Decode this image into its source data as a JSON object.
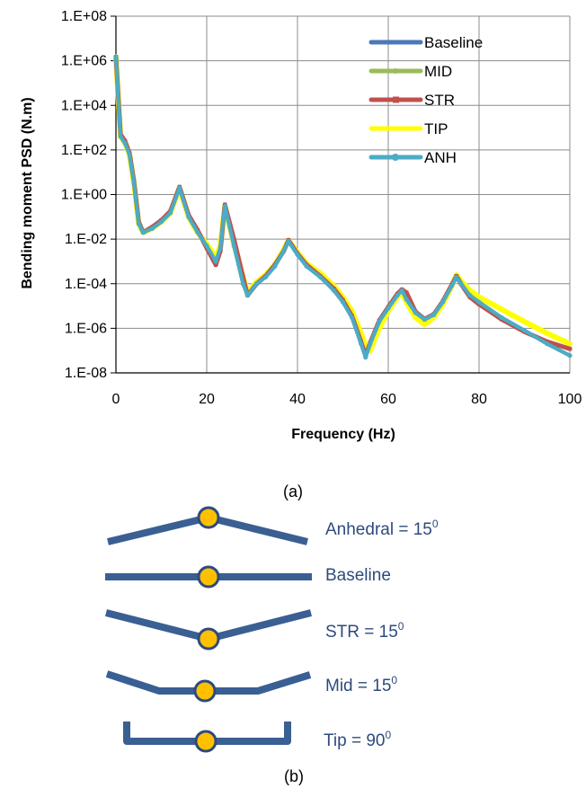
{
  "chart_data": {
    "type": "line",
    "title": "",
    "xlabel": "Frequency (Hz)",
    "ylabel": "Bending moment PSD (N.m)",
    "xlim": [
      0,
      100
    ],
    "ylim_log10": [
      -8,
      8
    ],
    "y_scale": "log",
    "x_ticks": [
      "0",
      "20",
      "40",
      "60",
      "80",
      "100"
    ],
    "y_ticks": [
      "1.E+08",
      "1.E+06",
      "1.E+04",
      "1.E+02",
      "1.E+00",
      "1.E-02",
      "1.E-04",
      "1.E-06",
      "1.E-08"
    ],
    "grid": true,
    "legend_position": "top-right",
    "series": [
      {
        "name": "Baseline",
        "color": "#4A78B8",
        "x": [
          0,
          1,
          2,
          3,
          4,
          5,
          6,
          8,
          10,
          12,
          14,
          16,
          18,
          20,
          22,
          23,
          24,
          26,
          28,
          29,
          31,
          33,
          35,
          37,
          38,
          40,
          42,
          45,
          48,
          50,
          52,
          54,
          55,
          56,
          58,
          60,
          62,
          63,
          64,
          66,
          68,
          70,
          72,
          74,
          75,
          76,
          78,
          80,
          85,
          90,
          95,
          100
        ],
        "y": [
          1500000.0,
          400,
          200,
          60,
          3,
          0.05,
          0.02,
          0.03,
          0.06,
          0.15,
          2,
          0.1,
          0.02,
          0.005,
          0.001,
          0.004,
          0.3,
          0.005,
          0.0001,
          3e-05,
          0.0001,
          0.0002,
          0.0006,
          0.003,
          0.008,
          0.002,
          0.0006,
          0.0002,
          5e-05,
          1.5e-05,
          3e-06,
          2e-07,
          5e-08,
          2e-07,
          2e-06,
          8e-06,
          3e-05,
          5e-05,
          2e-05,
          5e-06,
          2.5e-06,
          4e-06,
          1.5e-05,
          8e-05,
          0.0002,
          0.0001,
          3e-05,
          1.5e-05,
          3e-06,
          8e-07,
          2e-07,
          6e-08
        ]
      },
      {
        "name": "MID",
        "color": "#9BBB59",
        "x": [
          0,
          1,
          2,
          3,
          4,
          5,
          6,
          8,
          10,
          12,
          14,
          16,
          18,
          20,
          22,
          23,
          24,
          26,
          28,
          29,
          31,
          33,
          35,
          37,
          38,
          40,
          42,
          45,
          48,
          50,
          52,
          54,
          55,
          56,
          58,
          60,
          62,
          63,
          64,
          66,
          68,
          70,
          72,
          74,
          75,
          76,
          78,
          80,
          85,
          90,
          95,
          100
        ],
        "y": [
          1500000.0,
          400,
          200,
          60,
          3,
          0.05,
          0.02,
          0.03,
          0.06,
          0.15,
          2,
          0.1,
          0.02,
          0.005,
          0.001,
          0.004,
          0.3,
          0.005,
          0.0001,
          3e-05,
          0.0001,
          0.0002,
          0.0006,
          0.003,
          0.008,
          0.002,
          0.0006,
          0.0002,
          5e-05,
          1.5e-05,
          3e-06,
          2e-07,
          5e-08,
          2e-07,
          2e-06,
          8e-06,
          3e-05,
          5e-05,
          2e-05,
          5e-06,
          2.5e-06,
          4e-06,
          1.5e-05,
          8e-05,
          0.0002,
          0.0001,
          3e-05,
          1.5e-05,
          3e-06,
          8e-07,
          2e-07,
          6e-08
        ]
      },
      {
        "name": "STR",
        "color": "#C0504D",
        "x": [
          0,
          1,
          2,
          3,
          4,
          5,
          6,
          8,
          10,
          12,
          14,
          16,
          18,
          20,
          22,
          23,
          24,
          26,
          28,
          29,
          31,
          33,
          35,
          37,
          38,
          40,
          42,
          45,
          48,
          50,
          52,
          54,
          55,
          56,
          58,
          60,
          62,
          63,
          64,
          66,
          68,
          70,
          72,
          74,
          75,
          76,
          78,
          80,
          85,
          90,
          95,
          100
        ],
        "y": [
          1500000.0,
          500,
          250,
          70,
          3.5,
          0.06,
          0.02,
          0.035,
          0.07,
          0.18,
          2.2,
          0.12,
          0.025,
          0.004,
          0.0007,
          0.003,
          0.35,
          0.01,
          0.0002,
          3e-05,
          0.0001,
          0.00022,
          0.0007,
          0.003,
          0.009,
          0.0022,
          0.0007,
          0.00022,
          6e-05,
          1.8e-05,
          3.5e-06,
          2.5e-07,
          6e-08,
          2.2e-07,
          2.2e-06,
          9e-06,
          3.5e-05,
          5.5e-05,
          4e-05,
          5.5e-06,
          2.6e-06,
          4.2e-06,
          1.6e-05,
          9e-05,
          0.00022,
          0.0001,
          2.5e-05,
          1.2e-05,
          2.5e-06,
          7e-07,
          2.5e-07,
          1.2e-07
        ]
      },
      {
        "name": "TIP",
        "color": "#FFFF00",
        "x": [
          0,
          1,
          2,
          3,
          4,
          5,
          6,
          8,
          10,
          12,
          14,
          16,
          18,
          20,
          22,
          23,
          24,
          26,
          28,
          29,
          31,
          33,
          35,
          37,
          38,
          40,
          42,
          45,
          48,
          50,
          52,
          54,
          55,
          56,
          58,
          60,
          62,
          63,
          64,
          66,
          68,
          70,
          72,
          74,
          75,
          76,
          78,
          80,
          85,
          90,
          95,
          100
        ],
        "y": [
          1500000.0,
          400,
          200,
          60,
          3,
          0.05,
          0.02,
          0.03,
          0.06,
          0.15,
          2,
          0.1,
          0.02,
          0.006,
          0.0015,
          0.005,
          0.3,
          0.006,
          0.0002,
          4e-05,
          0.00012,
          0.00025,
          0.0007,
          0.0035,
          0.009,
          0.0025,
          0.0008,
          0.0003,
          8e-05,
          2.5e-05,
          6e-06,
          6e-07,
          1.5e-07,
          1e-07,
          1e-06,
          6e-06,
          2.5e-05,
          4e-05,
          1.5e-05,
          3e-06,
          1.5e-06,
          3e-06,
          1.2e-05,
          8e-05,
          0.00025,
          0.00013,
          5e-05,
          2.5e-05,
          7e-06,
          2e-06,
          6e-07,
          2e-07
        ]
      },
      {
        "name": "ANH",
        "color": "#4BACC6",
        "x": [
          0,
          1,
          2,
          3,
          4,
          5,
          6,
          8,
          10,
          12,
          14,
          16,
          18,
          20,
          22,
          23,
          24,
          26,
          28,
          29,
          31,
          33,
          35,
          37,
          38,
          40,
          42,
          45,
          48,
          50,
          52,
          54,
          55,
          56,
          58,
          60,
          62,
          63,
          64,
          66,
          68,
          70,
          72,
          74,
          75,
          76,
          78,
          80,
          85,
          90,
          95,
          100
        ],
        "y": [
          1500000.0,
          400,
          200,
          60,
          3,
          0.05,
          0.02,
          0.03,
          0.06,
          0.15,
          2,
          0.1,
          0.02,
          0.005,
          0.001,
          0.004,
          0.3,
          0.005,
          0.0001,
          3e-05,
          0.0001,
          0.0002,
          0.0006,
          0.003,
          0.008,
          0.002,
          0.0006,
          0.0002,
          5e-05,
          1.5e-05,
          3e-06,
          2e-07,
          5e-08,
          2e-07,
          2e-06,
          8e-06,
          3e-05,
          5e-05,
          2e-05,
          5e-06,
          2.5e-06,
          4e-06,
          1.5e-05,
          8e-05,
          0.0002,
          0.0001,
          3e-05,
          1.5e-05,
          3e-06,
          8e-07,
          2e-07,
          6e-08
        ]
      }
    ]
  },
  "panel_a_label": "(a)",
  "panel_b_label": "(b)",
  "configurations": [
    {
      "label": "Anhedral = 15",
      "sup": "0"
    },
    {
      "label": "Baseline",
      "sup": ""
    },
    {
      "label": "STR = 15",
      "sup": "0"
    },
    {
      "label": "Mid = 15",
      "sup": "0"
    },
    {
      "label": "Tip = 90",
      "sup": "0"
    }
  ],
  "colors": {
    "wing": "#3A5F93",
    "wing_edge": "#2E4A7D",
    "hub": "#FFC000",
    "label": "#2E4A7D",
    "grid": "#8C8C8C"
  }
}
